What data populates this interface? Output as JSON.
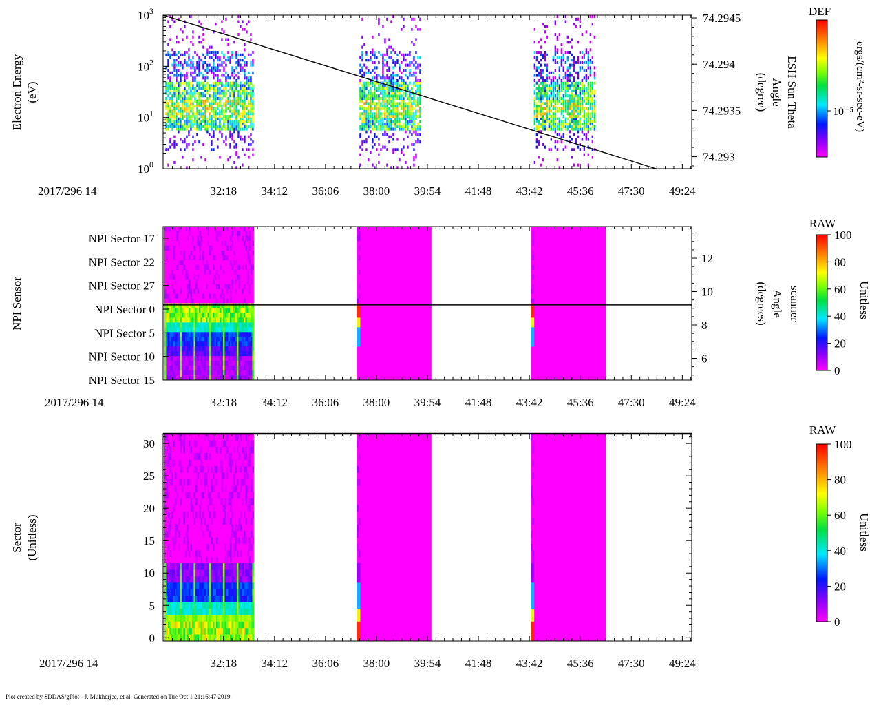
{
  "footer": "Plot created by SDDAS/gPlot - J. Mukherjee, et al.  Generated on Tue Oct 1 21:16:47 2019.",
  "date_label": "2017/296 14",
  "chart_data": [
    {
      "type": "heatmap",
      "name": "electron-energy",
      "ylabel": "Electron Energy",
      "ylabel_unit": "(eV)",
      "yscale": "log",
      "ylim_exponent": [
        0,
        3
      ],
      "ytick_exponents": [
        0,
        1,
        2,
        3
      ],
      "xlabel": "2017/296 14",
      "xtick_labels": [
        "32:18",
        "34:12",
        "36:06",
        "38:00",
        "39:54",
        "41:48",
        "43:42",
        "45:36",
        "47:30",
        "49:24"
      ],
      "xtick_seconds": [
        1938,
        2052,
        2166,
        2280,
        2394,
        2508,
        2622,
        2736,
        2850,
        2964
      ],
      "xlim_seconds": [
        1803,
        2985
      ],
      "bursts_seconds": [
        [
          1808,
          2006
        ],
        [
          2242,
          2377
        ],
        [
          2632,
          2767
        ]
      ],
      "right_axis": {
        "label_lines": [
          "ESH Sun Theta",
          "Angle",
          "(degree)"
        ],
        "ticks": [
          "74.2945",
          "74.294",
          "74.2935",
          "74.293"
        ],
        "tick_values": [
          74.2945,
          74.294,
          74.2935,
          74.293
        ],
        "ylim": [
          74.29287,
          74.29453
        ],
        "line": {
          "x_seconds": [
            1803,
            2905
          ],
          "values": [
            74.29453,
            74.29287
          ]
        }
      },
      "colorbar": {
        "title": "DEF",
        "unit": "ergs/(cm²-sr-sec-eV)",
        "tick_label": "10⁻⁵"
      }
    },
    {
      "type": "heatmap",
      "name": "npi-sensor",
      "ylabel": "NPI Sensor",
      "row_labels": [
        "NPI Sector 17",
        "NPI Sector 22",
        "NPI Sector 27",
        "NPI Sector 0",
        "NPI Sector 5",
        "NPI Sector 10",
        "NPI Sector 15"
      ],
      "xlabel": "2017/296 14",
      "xtick_labels": [
        "32:18",
        "34:12",
        "36:06",
        "38:00",
        "39:54",
        "41:48",
        "43:42",
        "45:36",
        "47:30",
        "49:24"
      ],
      "bursts_seconds": [
        [
          1806,
          2006
        ],
        [
          2236,
          2403
        ],
        [
          2625,
          2793
        ]
      ],
      "right_axis": {
        "label_lines": [
          "scanner",
          "Angle",
          "(degrees)"
        ],
        "ticks": [
          "12",
          "10",
          "8",
          "6"
        ],
        "tick_values": [
          12,
          10,
          8,
          6
        ],
        "ylim": [
          4.7,
          13.9
        ],
        "line": {
          "value": 9.2
        }
      },
      "colorbar": {
        "title": "RAW",
        "unit": "Unitless",
        "range": [
          0,
          100
        ],
        "ticks": [
          "100",
          "80",
          "60",
          "40",
          "20",
          "0"
        ]
      }
    },
    {
      "type": "heatmap",
      "name": "sector",
      "ylabel": "Sector",
      "ylabel_unit": "(Unitless)",
      "ylim": [
        -0.5,
        31.5
      ],
      "yticks": [
        "30",
        "25",
        "20",
        "15",
        "10",
        "5",
        "0"
      ],
      "ytick_values": [
        30,
        25,
        20,
        15,
        10,
        5,
        0
      ],
      "xlabel": "2017/296 14",
      "xtick_labels": [
        "32:18",
        "34:12",
        "36:06",
        "38:00",
        "39:54",
        "41:48",
        "43:42",
        "45:36",
        "47:30",
        "49:24"
      ],
      "bursts_seconds": [
        [
          1806,
          2006
        ],
        [
          2236,
          2403
        ],
        [
          2625,
          2793
        ]
      ],
      "colorbar": {
        "title": "RAW",
        "unit": "Unitless",
        "range": [
          0,
          100
        ],
        "ticks": [
          "100",
          "80",
          "60",
          "40",
          "20",
          "0"
        ]
      }
    }
  ]
}
